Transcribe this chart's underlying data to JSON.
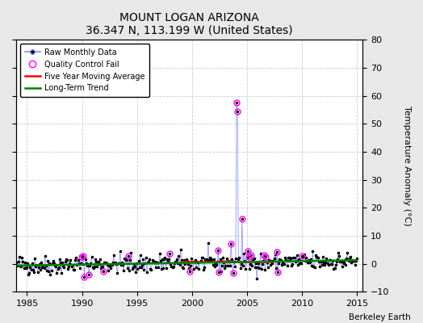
{
  "title": "MOUNT LOGAN ARIZONA",
  "subtitle": "36.347 N, 113.199 W (United States)",
  "ylabel_right": "Temperature Anomaly (°C)",
  "attribution": "Berkeley Earth",
  "xlim": [
    1984.0,
    2015.5
  ],
  "ylim": [
    -10,
    80
  ],
  "yticks": [
    -10,
    0,
    10,
    20,
    30,
    40,
    50,
    60,
    70,
    80
  ],
  "xticks": [
    1985,
    1990,
    1995,
    2000,
    2005,
    2010,
    2015
  ],
  "fig_bg_color": "#e8e8e8",
  "plot_bg_color": "#ffffff",
  "grid_color": "#cccccc",
  "raw_line_color": "#8888ff",
  "raw_marker_color": "black",
  "qc_fail_color": "magenta",
  "moving_avg_color": "red",
  "trend_color": "green",
  "seed": 42
}
